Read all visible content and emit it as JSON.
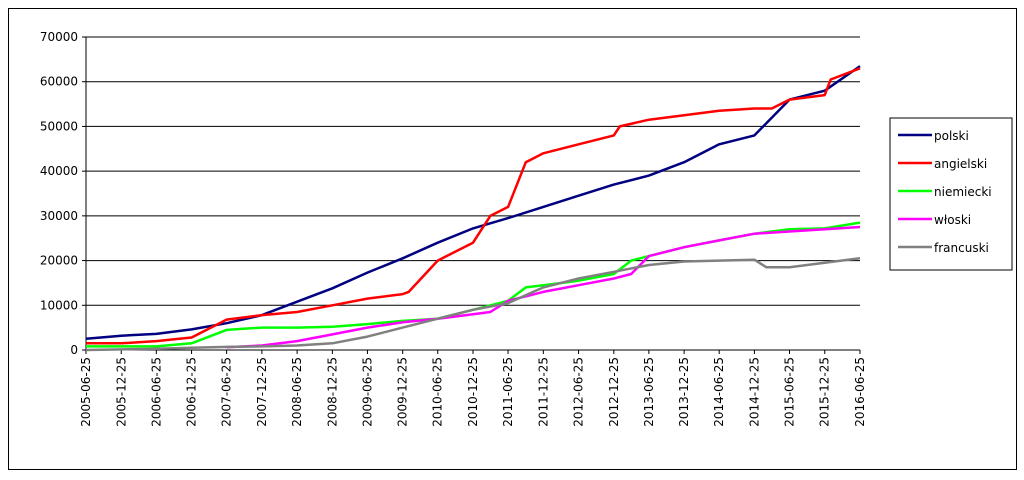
{
  "chart_data": {
    "type": "line",
    "title": "",
    "xlabel": "",
    "ylabel": "",
    "ylim": [
      0,
      70000
    ],
    "y_ticks": [
      "0",
      "10000",
      "20000",
      "30000",
      "40000",
      "50000",
      "60000",
      "70000"
    ],
    "x_ticks": [
      "2005-06-25",
      "2005-12-25",
      "2006-06-25",
      "2006-12-25",
      "2007-06-25",
      "2007-12-25",
      "2008-06-25",
      "2008-12-25",
      "2009-06-25",
      "2009-12-25",
      "2010-06-25",
      "2010-12-25",
      "2011-06-25",
      "2011-12-25",
      "2012-06-25",
      "2012-12-25",
      "2013-06-25",
      "2013-12-25",
      "2014-06-25",
      "2014-12-25",
      "2015-06-25",
      "2015-12-25",
      "2016-06-25"
    ],
    "grid": "horizontal",
    "legend_position": "right",
    "series": [
      {
        "name": "polski",
        "color": "#000080",
        "points": [
          [
            "2005-06-25",
            2500
          ],
          [
            "2005-12-25",
            3200
          ],
          [
            "2006-06-25",
            3600
          ],
          [
            "2006-12-25",
            4600
          ],
          [
            "2007-06-25",
            6000
          ],
          [
            "2007-12-25",
            7800
          ],
          [
            "2008-06-25",
            10800
          ],
          [
            "2008-12-25",
            13800
          ],
          [
            "2009-06-25",
            17300
          ],
          [
            "2009-12-25",
            20500
          ],
          [
            "2010-06-25",
            24000
          ],
          [
            "2010-12-25",
            27200
          ],
          [
            "2011-06-25",
            29500
          ],
          [
            "2011-12-25",
            32000
          ],
          [
            "2012-06-25",
            34500
          ],
          [
            "2012-12-25",
            37000
          ],
          [
            "2013-06-25",
            39000
          ],
          [
            "2013-12-25",
            42000
          ],
          [
            "2014-06-25",
            46000
          ],
          [
            "2014-12-25",
            48000
          ],
          [
            "2015-06-25",
            56000
          ],
          [
            "2015-12-25",
            58000
          ],
          [
            "2016-06-25",
            63500
          ]
        ]
      },
      {
        "name": "angielski",
        "color": "#FF0000",
        "points": [
          [
            "2005-06-25",
            1500
          ],
          [
            "2005-12-25",
            1500
          ],
          [
            "2006-06-25",
            2000
          ],
          [
            "2006-12-25",
            2800
          ],
          [
            "2007-06-25",
            6800
          ],
          [
            "2007-12-25",
            7800
          ],
          [
            "2008-06-25",
            8500
          ],
          [
            "2008-12-25",
            10000
          ],
          [
            "2009-06-25",
            11500
          ],
          [
            "2009-12-25",
            12500
          ],
          [
            "2010-01-25",
            13000
          ],
          [
            "2010-06-25",
            20000
          ],
          [
            "2010-12-25",
            24000
          ],
          [
            "2011-03-25",
            30000
          ],
          [
            "2011-06-25",
            32000
          ],
          [
            "2011-09-25",
            42000
          ],
          [
            "2011-12-25",
            44000
          ],
          [
            "2012-06-25",
            46000
          ],
          [
            "2012-12-25",
            48000
          ],
          [
            "2013-01-25",
            50000
          ],
          [
            "2013-06-25",
            51500
          ],
          [
            "2013-12-25",
            52500
          ],
          [
            "2014-06-25",
            53500
          ],
          [
            "2014-12-25",
            54000
          ],
          [
            "2015-03-25",
            54000
          ],
          [
            "2015-06-25",
            56000
          ],
          [
            "2015-12-25",
            57000
          ],
          [
            "2016-01-25",
            60500
          ],
          [
            "2016-06-25",
            63000
          ]
        ]
      },
      {
        "name": "niemiecki",
        "color": "#00FF00",
        "points": [
          [
            "2005-06-25",
            800
          ],
          [
            "2005-12-25",
            800
          ],
          [
            "2006-06-25",
            800
          ],
          [
            "2006-12-25",
            1500
          ],
          [
            "2007-06-25",
            4500
          ],
          [
            "2007-12-25",
            5000
          ],
          [
            "2008-06-25",
            5000
          ],
          [
            "2008-12-25",
            5200
          ],
          [
            "2009-06-25",
            5800
          ],
          [
            "2009-12-25",
            6500
          ],
          [
            "2010-06-25",
            7000
          ],
          [
            "2010-12-25",
            9000
          ],
          [
            "2011-06-25",
            11000
          ],
          [
            "2011-09-25",
            14000
          ],
          [
            "2011-12-25",
            14500
          ],
          [
            "2012-06-25",
            15500
          ],
          [
            "2012-12-25",
            17000
          ],
          [
            "2013-03-25",
            20000
          ],
          [
            "2013-06-25",
            21000
          ],
          [
            "2013-12-25",
            23000
          ],
          [
            "2014-06-25",
            24500
          ],
          [
            "2014-12-25",
            26000
          ],
          [
            "2015-06-25",
            27000
          ],
          [
            "2015-12-25",
            27200
          ],
          [
            "2016-06-25",
            28500
          ]
        ]
      },
      {
        "name": "włoski",
        "color": "#FF00FF",
        "points": [
          [
            "2007-06-25",
            600
          ],
          [
            "2007-12-25",
            1000
          ],
          [
            "2008-06-25",
            2000
          ],
          [
            "2008-12-25",
            3500
          ],
          [
            "2009-06-25",
            5000
          ],
          [
            "2009-12-25",
            6200
          ],
          [
            "2010-06-25",
            7000
          ],
          [
            "2010-12-25",
            8000
          ],
          [
            "2011-03-25",
            8500
          ],
          [
            "2011-06-25",
            11000
          ],
          [
            "2011-12-25",
            13000
          ],
          [
            "2012-06-25",
            14500
          ],
          [
            "2012-12-25",
            16000
          ],
          [
            "2013-03-25",
            17000
          ],
          [
            "2013-06-25",
            21000
          ],
          [
            "2013-12-25",
            23000
          ],
          [
            "2014-06-25",
            24500
          ],
          [
            "2014-12-25",
            26000
          ],
          [
            "2015-06-25",
            26500
          ],
          [
            "2015-12-25",
            27000
          ],
          [
            "2016-06-25",
            27500
          ]
        ]
      },
      {
        "name": "francuski",
        "color": "#808080",
        "points": [
          [
            "2005-06-25",
            0
          ],
          [
            "2006-06-25",
            300
          ],
          [
            "2006-12-25",
            500
          ],
          [
            "2007-06-25",
            700
          ],
          [
            "2007-12-25",
            800
          ],
          [
            "2008-06-25",
            1000
          ],
          [
            "2008-12-25",
            1500
          ],
          [
            "2009-06-25",
            3000
          ],
          [
            "2009-12-25",
            5000
          ],
          [
            "2010-06-25",
            7000
          ],
          [
            "2010-12-25",
            9000
          ],
          [
            "2011-06-25",
            10500
          ],
          [
            "2011-12-25",
            14000
          ],
          [
            "2012-06-25",
            16000
          ],
          [
            "2012-12-25",
            17500
          ],
          [
            "2013-06-25",
            19000
          ],
          [
            "2013-12-25",
            19800
          ],
          [
            "2014-06-25",
            20000
          ],
          [
            "2014-12-25",
            20200
          ],
          [
            "2015-02-25",
            18500
          ],
          [
            "2015-06-25",
            18500
          ],
          [
            "2015-12-25",
            19500
          ],
          [
            "2016-06-25",
            20500
          ]
        ]
      }
    ]
  }
}
